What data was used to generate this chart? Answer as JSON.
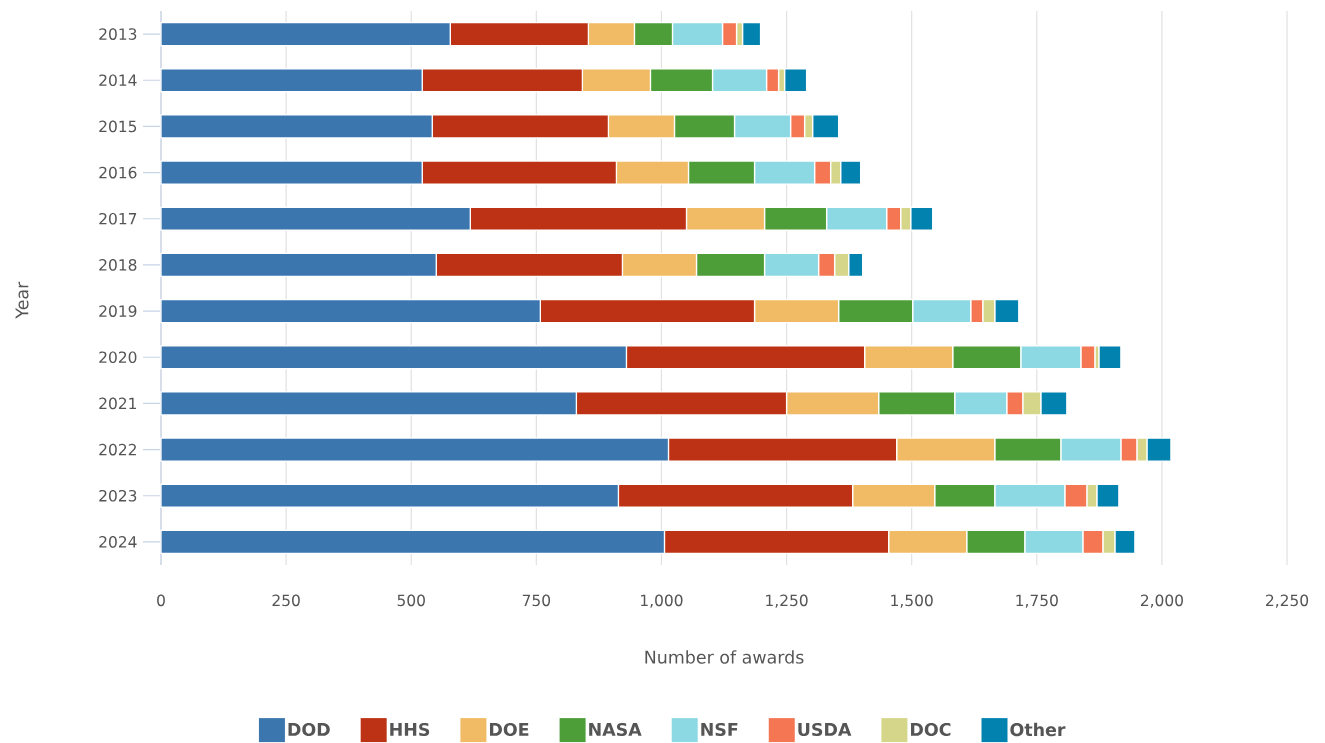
{
  "chart_data": {
    "type": "bar",
    "orientation": "horizontal",
    "stacked": true,
    "xlabel": "Number of awards",
    "ylabel": "Year",
    "categories": [
      "2013",
      "2014",
      "2015",
      "2016",
      "2017",
      "2018",
      "2019",
      "2020",
      "2021",
      "2022",
      "2023",
      "2024"
    ],
    "series": [
      {
        "name": "DOD",
        "color": "#3b76af",
        "values": [
          578,
          522,
          542,
          522,
          618,
          550,
          758,
          930,
          830,
          1014,
          914,
          1006
        ]
      },
      {
        "name": "HHS",
        "color": "#bd3214",
        "values": [
          276,
          320,
          352,
          388,
          432,
          372,
          428,
          476,
          420,
          456,
          468,
          448
        ]
      },
      {
        "name": "DOE",
        "color": "#f0bb64",
        "values": [
          92,
          136,
          132,
          144,
          156,
          148,
          168,
          176,
          184,
          196,
          164,
          156
        ]
      },
      {
        "name": "NASA",
        "color": "#4d9e38",
        "values": [
          76,
          124,
          120,
          132,
          124,
          136,
          148,
          136,
          152,
          132,
          120,
          116
        ]
      },
      {
        "name": "NSF",
        "color": "#8cd8e3",
        "values": [
          100,
          108,
          112,
          120,
          120,
          108,
          116,
          120,
          104,
          120,
          140,
          116
        ]
      },
      {
        "name": "USDA",
        "color": "#f47652",
        "values": [
          28,
          24,
          28,
          32,
          28,
          32,
          24,
          28,
          32,
          32,
          44,
          40
        ]
      },
      {
        "name": "DOC",
        "color": "#d5d68a",
        "values": [
          12,
          12,
          16,
          20,
          20,
          28,
          24,
          8,
          36,
          20,
          20,
          24
        ]
      },
      {
        "name": "Other",
        "color": "#0283af",
        "values": [
          36,
          44,
          52,
          40,
          44,
          28,
          48,
          44,
          52,
          48,
          44,
          40
        ]
      }
    ],
    "xlim": [
      0,
      2250
    ],
    "xticks": [
      0,
      250,
      500,
      750,
      {
        "value": 1000,
        "label": "1,000"
      },
      {
        "value": 1250,
        "label": "1,250"
      },
      {
        "value": 1500,
        "label": "1,500"
      },
      {
        "value": 1750,
        "label": "1,750"
      },
      {
        "value": 2000,
        "label": "2,000"
      },
      {
        "value": 2250,
        "label": "2,250"
      }
    ],
    "grid": "x",
    "legend": "bottom"
  }
}
